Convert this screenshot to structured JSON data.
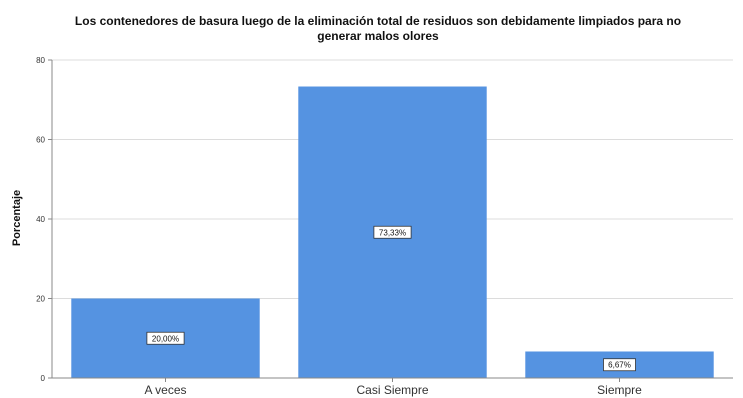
{
  "chart_data": {
    "type": "bar",
    "title_line1": "Los contenedores de basura luego de la eliminación total de residuos son debidamente limpiados para no",
    "title_line2": "generar malos olores",
    "xlabel": "",
    "ylabel": "Porcentaje",
    "ylim": [
      0,
      80
    ],
    "yticks": [
      "0",
      "20",
      "40",
      "60",
      "80"
    ],
    "categories": [
      "A veces",
      "Casi Siempre",
      "Siempre"
    ],
    "values": [
      20.0,
      73.33,
      6.67
    ],
    "data_labels": [
      "20,00%",
      "73,33%",
      "6,67%"
    ],
    "bar_color": "#5593e1",
    "grid": "horizontal",
    "legend": "none"
  }
}
